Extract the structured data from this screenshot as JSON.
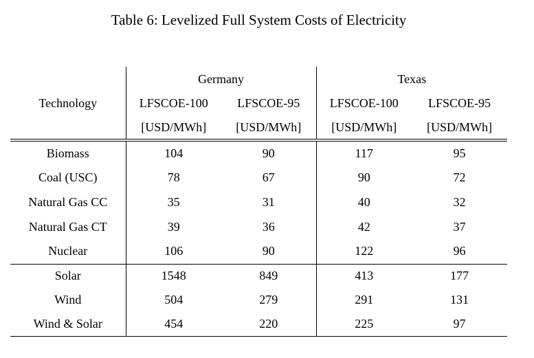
{
  "caption": "Table 6: Levelized Full System Costs of Electricity",
  "colors": {
    "background": "#ffffff",
    "text": "#000000",
    "rule": "#000000"
  },
  "table": {
    "technology_header": "Technology",
    "region_groups": [
      "Germany",
      "Texas"
    ],
    "measure_headers": [
      "LFSCOE-100",
      "LFSCOE-95",
      "LFSCOE-100",
      "LFSCOE-95"
    ],
    "unit_label": "[USD/MWh]",
    "row_groups": [
      [
        {
          "technology": "Biomass",
          "values": [
            104,
            90,
            117,
            95
          ]
        },
        {
          "technology": "Coal (USC)",
          "values": [
            78,
            67,
            90,
            72
          ]
        },
        {
          "technology": "Natural Gas CC",
          "values": [
            35,
            31,
            40,
            32
          ]
        },
        {
          "technology": "Natural Gas CT",
          "values": [
            39,
            36,
            42,
            37
          ]
        },
        {
          "technology": "Nuclear",
          "values": [
            106,
            90,
            122,
            96
          ]
        }
      ],
      [
        {
          "technology": "Solar",
          "values": [
            1548,
            849,
            413,
            177
          ]
        },
        {
          "technology": "Wind",
          "values": [
            504,
            279,
            291,
            131
          ]
        },
        {
          "technology": "Wind & Solar",
          "values": [
            454,
            220,
            225,
            97
          ]
        }
      ]
    ]
  }
}
